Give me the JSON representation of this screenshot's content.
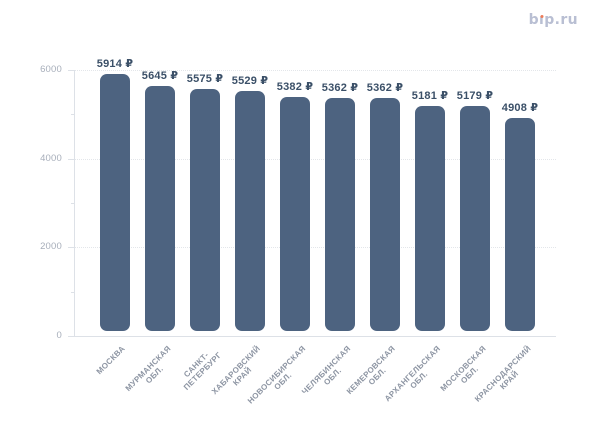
{
  "logo": {
    "text": "bip.ru",
    "color": "#b9bfd3",
    "dot_color": "#ee7c58"
  },
  "chart_data": {
    "type": "bar",
    "title": "",
    "xlabel": "",
    "ylabel": "",
    "categories": [
      "МОСКВА",
      "МУРМАНСКАЯ\nОБЛ.",
      "САНКТ-\nПЕТЕРБУРГ",
      "ХАБАРОВСКИЙ\nКРАЙ",
      "НОВОСИБИРСКАЯ\nОБЛ.",
      "ЧЕЛЯБИНСКАЯ\nОБЛ.",
      "КЕМЕРОВСКАЯ\nОБЛ.",
      "АРХАНГЕЛЬСКАЯ\nОБЛ.",
      "МОСКОВСКАЯ\nОБЛ.",
      "КРАСНОДАРСКИЙ\nКРАЙ"
    ],
    "values": [
      5914,
      5645,
      5575,
      5529,
      5382,
      5362,
      5362,
      5181,
      5179,
      4908
    ],
    "value_suffix": "₽",
    "ylim": [
      0,
      6000
    ],
    "yticks": [
      0,
      2000,
      4000,
      6000
    ],
    "ytick_labels": [
      "0",
      "2000",
      "4000",
      "6000"
    ],
    "minor_yticks": [
      1000,
      3000,
      5000
    ],
    "grid": true,
    "legend": false,
    "bar_color": "#4d6380",
    "value_label_color": "#3b5068",
    "category_label_color": "#8d95a3",
    "tick_label_color": "#a7aeba",
    "grid_color": "#e3e6ea",
    "axis_color": "#dde1e7"
  }
}
